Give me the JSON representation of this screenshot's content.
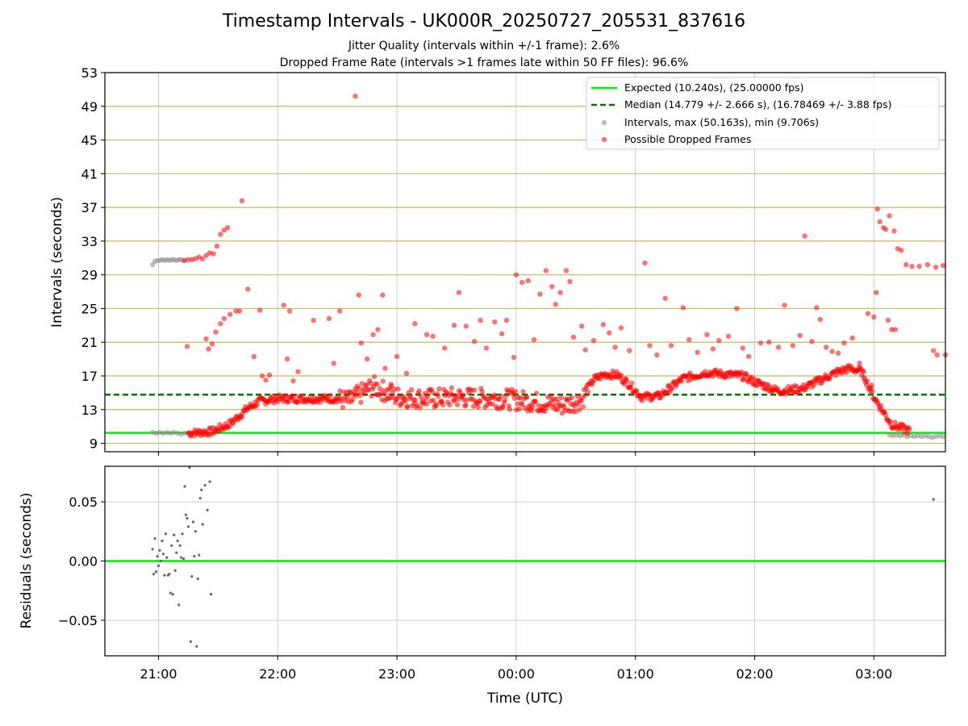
{
  "chart_data": [
    {
      "type": "scatter",
      "title": "Timestamp Intervals - UK000R_20250727_205531_837616",
      "subtitles": [
        "Jitter Quality (intervals within +/-1 frame): 2.6%",
        "Dropped Frame Rate (intervals >1 frames late within 50 FF files): 96.6%"
      ],
      "xlabel": "",
      "ylabel": "Intervals (seconds)",
      "xlim_hours": [
        20.55,
        27.6
      ],
      "ylim": [
        8,
        53
      ],
      "yticks": [
        9,
        13,
        17,
        21,
        25,
        29,
        33,
        37,
        41,
        45,
        49,
        53
      ],
      "expected": {
        "value": 10.24,
        "label": "Expected (10.240s), (25.00000 fps)",
        "color": "#00ee00"
      },
      "median": {
        "value": 14.779,
        "label": "Median (14.779 +/- 2.666 s), (16.78469 +/- 3.88 fps)",
        "color": "#007700"
      },
      "intervals_series": {
        "label": "Intervals, max (50.163s), min (9.706s)",
        "color": "#888888",
        "points": [
          [
            20.95,
            30.2
          ],
          [
            20.97,
            30.6
          ],
          [
            20.99,
            30.7
          ],
          [
            21.01,
            30.7
          ],
          [
            21.03,
            30.8
          ],
          [
            21.05,
            30.7
          ],
          [
            21.07,
            30.8
          ],
          [
            21.09,
            30.7
          ],
          [
            21.11,
            30.8
          ],
          [
            21.13,
            30.8
          ],
          [
            21.15,
            30.7
          ],
          [
            21.17,
            30.8
          ],
          [
            21.19,
            30.8
          ],
          [
            21.21,
            30.7
          ],
          [
            20.95,
            10.3
          ],
          [
            20.98,
            10.2
          ],
          [
            21.01,
            10.3
          ],
          [
            21.04,
            10.2
          ],
          [
            21.07,
            10.3
          ],
          [
            21.1,
            10.2
          ],
          [
            21.13,
            10.3
          ],
          [
            21.16,
            10.2
          ],
          [
            21.19,
            10.1
          ],
          [
            21.22,
            10.2
          ],
          [
            27.13,
            10.0
          ],
          [
            27.16,
            9.9
          ],
          [
            27.19,
            10.0
          ],
          [
            27.22,
            9.9
          ],
          [
            27.25,
            10.0
          ],
          [
            27.28,
            9.8
          ],
          [
            27.31,
            9.9
          ],
          [
            27.34,
            9.8
          ],
          [
            27.37,
            9.9
          ],
          [
            27.4,
            9.8
          ],
          [
            27.43,
            9.9
          ],
          [
            27.46,
            9.8
          ],
          [
            27.49,
            9.7
          ],
          [
            27.52,
            9.8
          ],
          [
            27.55,
            9.9
          ],
          [
            27.58,
            9.8
          ]
        ]
      },
      "dropped_series": {
        "label": "Possible Dropped Frames",
        "color": "#ff0000",
        "points": [
          [
            21.22,
            30.7
          ],
          [
            21.25,
            30.8
          ],
          [
            21.28,
            30.8
          ],
          [
            21.31,
            30.9
          ],
          [
            21.34,
            31.1
          ],
          [
            21.37,
            30.9
          ],
          [
            21.4,
            31.3
          ],
          [
            21.43,
            31.6
          ],
          [
            21.46,
            31.5
          ],
          [
            21.49,
            32.4
          ],
          [
            21.52,
            33.8
          ],
          [
            21.55,
            34.3
          ],
          [
            21.58,
            34.6
          ],
          [
            21.7,
            37.8
          ],
          [
            21.24,
            20.5
          ],
          [
            21.4,
            21.4
          ],
          [
            21.45,
            20.8
          ],
          [
            21.48,
            22.2
          ],
          [
            21.52,
            23.2
          ],
          [
            21.55,
            23.8
          ],
          [
            21.6,
            24.3
          ],
          [
            21.65,
            24.7
          ],
          [
            21.68,
            24.7
          ],
          [
            21.75,
            27.3
          ],
          [
            21.85,
            24.8
          ],
          [
            21.42,
            20.2
          ],
          [
            21.8,
            19.3
          ],
          [
            21.87,
            17.0
          ],
          [
            21.9,
            16.5
          ],
          [
            21.93,
            17.1
          ],
          [
            22.05,
            25.4
          ],
          [
            22.08,
            19.0
          ],
          [
            22.1,
            24.7
          ],
          [
            22.13,
            16.4
          ],
          [
            22.17,
            17.5
          ],
          [
            22.3,
            23.6
          ],
          [
            22.43,
            23.8
          ],
          [
            22.47,
            18.5
          ],
          [
            22.52,
            24.7
          ],
          [
            22.68,
            26.6
          ],
          [
            22.7,
            20.9
          ],
          [
            22.75,
            19.0
          ],
          [
            22.8,
            21.9
          ],
          [
            22.84,
            22.5
          ],
          [
            22.88,
            26.6
          ],
          [
            22.9,
            17.9
          ],
          [
            22.95,
            16.0
          ],
          [
            23.0,
            19.3
          ],
          [
            23.08,
            17.3
          ],
          [
            23.15,
            23.2
          ],
          [
            23.25,
            21.9
          ],
          [
            23.3,
            21.7
          ],
          [
            23.4,
            20.3
          ],
          [
            23.48,
            23.0
          ],
          [
            23.52,
            26.9
          ],
          [
            23.58,
            22.9
          ],
          [
            23.65,
            21.1
          ],
          [
            23.7,
            23.6
          ],
          [
            23.75,
            20.3
          ],
          [
            23.82,
            23.4
          ],
          [
            23.88,
            22.0
          ],
          [
            23.92,
            23.6
          ],
          [
            23.98,
            19.2
          ],
          [
            24.0,
            29.0
          ],
          [
            24.05,
            28.1
          ],
          [
            24.1,
            28.3
          ],
          [
            24.15,
            21.3
          ],
          [
            24.2,
            26.7
          ],
          [
            24.25,
            29.5
          ],
          [
            24.3,
            27.6
          ],
          [
            24.33,
            25.5
          ],
          [
            24.37,
            26.9
          ],
          [
            24.42,
            29.5
          ],
          [
            24.45,
            28.2
          ],
          [
            24.48,
            21.6
          ],
          [
            24.55,
            22.9
          ],
          [
            24.58,
            20.1
          ],
          [
            24.65,
            21.2
          ],
          [
            24.73,
            23.1
          ],
          [
            24.78,
            22.1
          ],
          [
            24.83,
            20.4
          ],
          [
            24.88,
            22.7
          ],
          [
            24.95,
            20.0
          ],
          [
            25.08,
            30.4
          ],
          [
            25.12,
            20.6
          ],
          [
            25.18,
            19.5
          ],
          [
            25.25,
            26.2
          ],
          [
            25.3,
            20.6
          ],
          [
            25.4,
            25.1
          ],
          [
            25.45,
            21.3
          ],
          [
            25.52,
            19.8
          ],
          [
            25.6,
            21.9
          ],
          [
            25.65,
            20.2
          ],
          [
            25.7,
            21.2
          ],
          [
            25.78,
            21.7
          ],
          [
            25.85,
            25.0
          ],
          [
            25.9,
            20.3
          ],
          [
            25.95,
            19.3
          ],
          [
            26.05,
            20.9
          ],
          [
            26.12,
            21.0
          ],
          [
            26.2,
            20.4
          ],
          [
            26.25,
            25.4
          ],
          [
            26.32,
            20.6
          ],
          [
            26.38,
            21.8
          ],
          [
            26.42,
            33.6
          ],
          [
            26.48,
            21.1
          ],
          [
            26.52,
            25.1
          ],
          [
            26.55,
            23.7
          ],
          [
            26.6,
            20.4
          ],
          [
            26.65,
            19.9
          ],
          [
            26.7,
            19.7
          ],
          [
            26.75,
            20.9
          ],
          [
            26.82,
            21.5
          ],
          [
            26.88,
            18.5
          ],
          [
            26.92,
            16.8
          ],
          [
            26.95,
            24.4
          ],
          [
            26.98,
            15.9
          ],
          [
            27.0,
            24.0
          ],
          [
            27.02,
            26.9
          ],
          [
            27.03,
            36.8
          ],
          [
            27.05,
            35.3
          ],
          [
            27.08,
            34.6
          ],
          [
            27.1,
            34.4
          ],
          [
            27.13,
            36.0
          ],
          [
            27.17,
            34.2
          ],
          [
            27.2,
            32.1
          ],
          [
            27.23,
            31.9
          ],
          [
            27.27,
            30.2
          ],
          [
            27.32,
            30.0
          ],
          [
            27.38,
            30.0
          ],
          [
            27.45,
            30.2
          ],
          [
            27.52,
            29.9
          ],
          [
            27.58,
            30.1
          ],
          [
            27.12,
            23.6
          ],
          [
            27.15,
            22.5
          ],
          [
            27.18,
            22.5
          ],
          [
            27.5,
            20.0
          ],
          [
            27.53,
            19.5
          ],
          [
            27.6,
            19.5
          ],
          [
            22.65,
            50.2
          ]
        ],
        "band": {
          "x": [
            21.25,
            21.45,
            21.6,
            21.75,
            21.85,
            22.0,
            22.5,
            22.6,
            22.8,
            23.0,
            23.3,
            23.5,
            23.6,
            23.9,
            24.1,
            24.4,
            24.55,
            24.65,
            24.75,
            24.85,
            24.95,
            25.05,
            25.2,
            25.4,
            25.6,
            25.9,
            26.0,
            26.2,
            26.4,
            26.7,
            26.8,
            26.9,
            27.0,
            27.15,
            27.3
          ],
          "y": [
            10.2,
            10.4,
            11.3,
            13.2,
            14.0,
            14.3,
            14.3,
            14.0,
            15.8,
            14.5,
            14.3,
            14.5,
            14.4,
            14.3,
            14.0,
            13.5,
            14.2,
            16.6,
            17.2,
            17.1,
            16.0,
            14.5,
            14.6,
            16.7,
            17.4,
            17.0,
            16.3,
            15.2,
            15.5,
            17.5,
            17.9,
            17.5,
            14.5,
            11.2,
            10.5
          ]
        }
      },
      "legend_position": "top-right",
      "grid": "horizontal-olive-and-vertical-grey"
    },
    {
      "type": "scatter",
      "xlabel": "Time (UTC)",
      "ylabel": "Residuals (seconds)",
      "ylim": [
        -0.08,
        0.08
      ],
      "yticks": [
        -0.05,
        0.0,
        0.05
      ],
      "ytick_labels": [
        "−0.05",
        "0.00",
        "0.05"
      ],
      "zero_line_color": "#00ee00",
      "x_tick_hours": [
        21,
        22,
        23,
        24,
        25,
        26,
        27
      ],
      "x_tick_labels": [
        "21:00",
        "22:00",
        "23:00",
        "00:00",
        "01:00",
        "02:00",
        "03:00"
      ],
      "points_color": "#666666",
      "points": [
        [
          20.95,
          0.01
        ],
        [
          20.96,
          -0.011
        ],
        [
          20.97,
          0.019
        ],
        [
          20.98,
          -0.009
        ],
        [
          20.99,
          0.004
        ],
        [
          21.0,
          -0.004
        ],
        [
          21.01,
          0.009
        ],
        [
          21.02,
          0.0
        ],
        [
          21.03,
          0.017
        ],
        [
          21.04,
          0.006
        ],
        [
          21.05,
          -0.012
        ],
        [
          21.06,
          0.023
        ],
        [
          21.07,
          0.003
        ],
        [
          21.08,
          -0.012
        ],
        [
          21.09,
          -0.011
        ],
        [
          21.1,
          -0.027
        ],
        [
          21.11,
          0.013
        ],
        [
          21.12,
          -0.028
        ],
        [
          21.13,
          0.022
        ],
        [
          21.14,
          -0.008
        ],
        [
          21.15,
          0.007
        ],
        [
          21.16,
          0.017
        ],
        [
          21.17,
          -0.037
        ],
        [
          21.18,
          0.013
        ],
        [
          21.19,
          0.003
        ],
        [
          21.2,
          0.023
        ],
        [
          21.21,
          0.002
        ],
        [
          21.22,
          0.063
        ],
        [
          21.23,
          0.039
        ],
        [
          21.24,
          0.036
        ],
        [
          21.25,
          0.029
        ],
        [
          21.26,
          0.079
        ],
        [
          21.27,
          -0.068
        ],
        [
          21.28,
          -0.013
        ],
        [
          21.29,
          0.033
        ],
        [
          21.3,
          0.004
        ],
        [
          21.31,
          0.025
        ],
        [
          21.32,
          -0.072
        ],
        [
          21.33,
          -0.015
        ],
        [
          21.34,
          0.005
        ],
        [
          21.35,
          0.053
        ],
        [
          21.36,
          0.06
        ],
        [
          21.37,
          0.031
        ],
        [
          21.39,
          0.064
        ],
        [
          21.41,
          0.043
        ],
        [
          21.43,
          0.067
        ],
        [
          21.44,
          -0.028
        ],
        [
          27.5,
          0.052
        ]
      ]
    }
  ]
}
